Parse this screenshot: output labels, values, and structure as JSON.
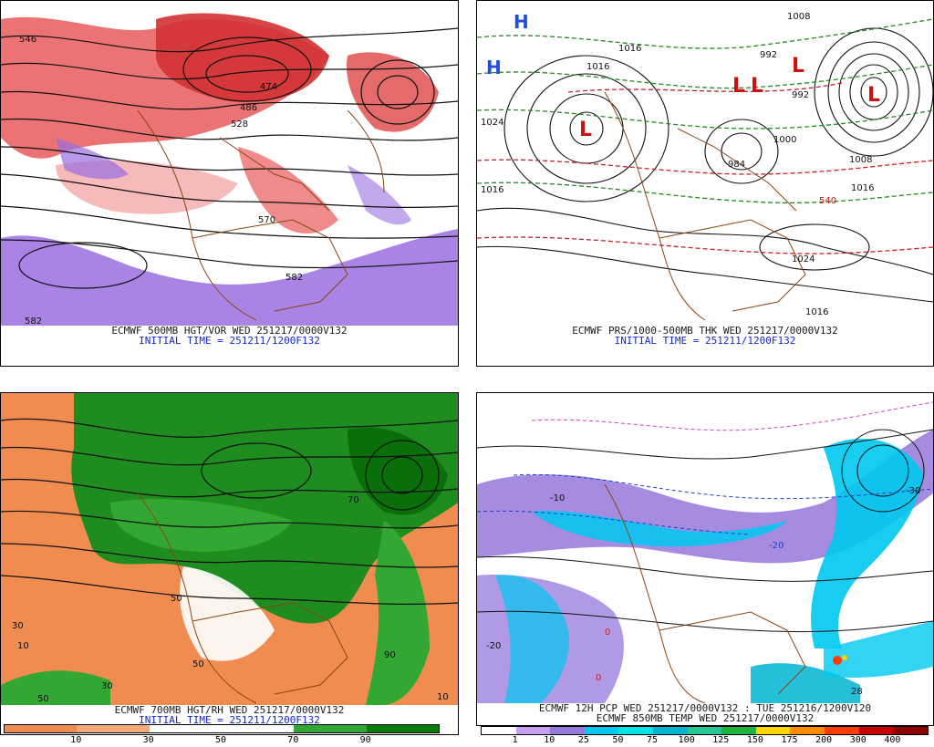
{
  "panels": [
    {
      "id": "p1",
      "caption1": "ECMWF 500MB HGT/VOR WED 251217/0000V132",
      "caption2": "INITIAL TIME = 251211/1200F132",
      "contour_labels": [
        "546",
        "474",
        "486",
        "528",
        "570",
        "582",
        "582"
      ]
    },
    {
      "id": "p2",
      "caption1": "ECMWF PRS/1000-500MB THK WED 251217/0000V132",
      "caption2": "INITIAL TIME = 251211/1200F132",
      "contour_labels": [
        "1008",
        "1016",
        "1016",
        "992",
        "992",
        "984",
        "1000",
        "1008",
        "1016",
        "540",
        "1016",
        "1024",
        "1024",
        "1016"
      ],
      "pressure_centers": [
        "L",
        "L",
        "L",
        "L",
        "L",
        "H",
        "H"
      ]
    },
    {
      "id": "p3",
      "caption1": "ECMWF 700MB HGT/RH WED 251217/0000V132",
      "caption2": "INITIAL TIME = 251211/1200F132",
      "contour_labels": [
        "50",
        "70",
        "30",
        "10",
        "50",
        "90",
        "30",
        "50",
        "10"
      ],
      "colorbar": {
        "colors": [
          "#f08c50",
          "#f5a878",
          "#ffffff",
          "#ffffff",
          "#32a832",
          "#0a7a0a"
        ],
        "ticks": [
          "10",
          "30",
          "50",
          "70",
          "90"
        ]
      }
    },
    {
      "id": "p4",
      "caption1": "ECMWF 12H PCP WED 251217/0000V132 : TUE 251216/1200V120",
      "caption2": "ECMWF 850MB TEMP WED 251217/0000V132",
      "contour_labels": [
        "-20",
        "-10",
        "0",
        "-20",
        "0",
        "-30",
        "28"
      ],
      "colorbar": {
        "colors": [
          "#ffffff",
          "#c8a0f0",
          "#9678dc",
          "#00c8f0",
          "#00e6e6",
          "#00b4d2",
          "#28c896",
          "#1eb43c",
          "#ffd700",
          "#ff8c00",
          "#ff3c00",
          "#c80000",
          "#8c0000"
        ],
        "ticks": [
          "1",
          "10",
          "25",
          "50",
          "75",
          "100",
          "125",
          "150",
          "175",
          "200",
          "300",
          "400"
        ]
      }
    }
  ]
}
